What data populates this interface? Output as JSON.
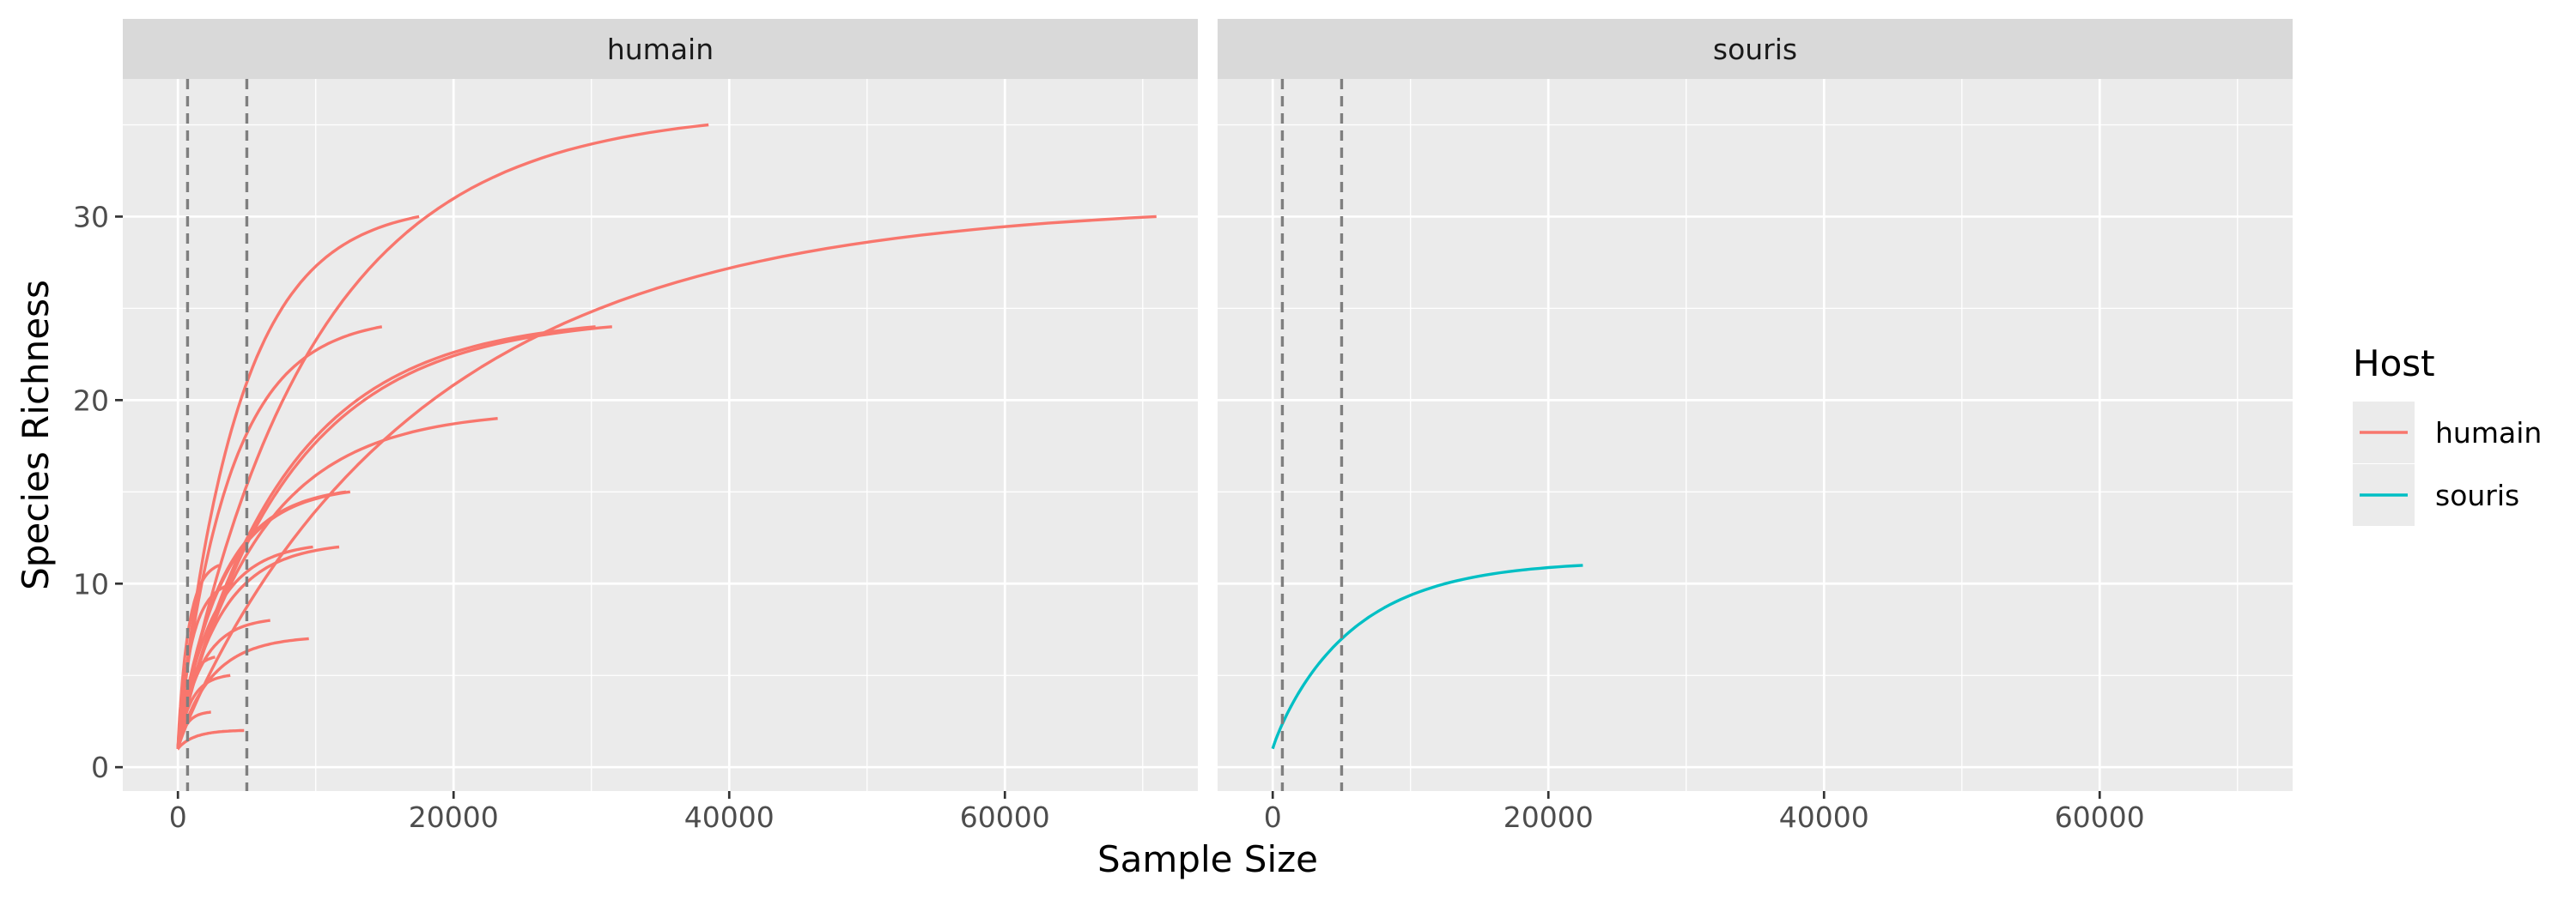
{
  "chart_data": {
    "type": "line",
    "xlabel": "Sample Size",
    "ylabel": "Species Richness",
    "xlim": [
      -4000,
      74000
    ],
    "ylim": [
      -1.3,
      37.5
    ],
    "x_ticks": [
      0,
      20000,
      40000,
      60000
    ],
    "x_tick_labels": [
      "0",
      "20000",
      "40000",
      "60000"
    ],
    "y_ticks": [
      0,
      10,
      20,
      30
    ],
    "y_tick_labels": [
      "0",
      "10",
      "20",
      "30"
    ],
    "reference_lines_x": [
      700,
      5000
    ],
    "grid": true,
    "legend": {
      "title": "Host",
      "position": "right",
      "entries": [
        {
          "label": "humain",
          "color": "#F8766D"
        },
        {
          "label": "souris",
          "color": "#00BFC4"
        }
      ]
    },
    "panels": [
      {
        "strip": "humain",
        "color": "#F8766D",
        "curves": [
          {
            "max_x": 38500,
            "max_y": 35
          },
          {
            "max_x": 71000,
            "max_y": 30
          },
          {
            "max_x": 17500,
            "max_y": 30
          },
          {
            "max_x": 14800,
            "max_y": 24
          },
          {
            "max_x": 31500,
            "max_y": 24
          },
          {
            "max_x": 30300,
            "max_y": 24
          },
          {
            "max_x": 23200,
            "max_y": 19
          },
          {
            "max_x": 12500,
            "max_y": 15
          },
          {
            "max_x": 12200,
            "max_y": 15
          },
          {
            "max_x": 9800,
            "max_y": 12
          },
          {
            "max_x": 11700,
            "max_y": 12
          },
          {
            "max_x": 4000,
            "max_y": 10
          },
          {
            "max_x": 3000,
            "max_y": 11
          },
          {
            "max_x": 6700,
            "max_y": 8
          },
          {
            "max_x": 9500,
            "max_y": 7
          },
          {
            "max_x": 2700,
            "max_y": 6
          },
          {
            "max_x": 3800,
            "max_y": 5
          },
          {
            "max_x": 2400,
            "max_y": 3
          },
          {
            "max_x": 4800,
            "max_y": 2
          }
        ]
      },
      {
        "strip": "souris",
        "color": "#00BFC4",
        "curves": [
          {
            "max_x": 22500,
            "max_y": 11
          }
        ]
      }
    ]
  }
}
